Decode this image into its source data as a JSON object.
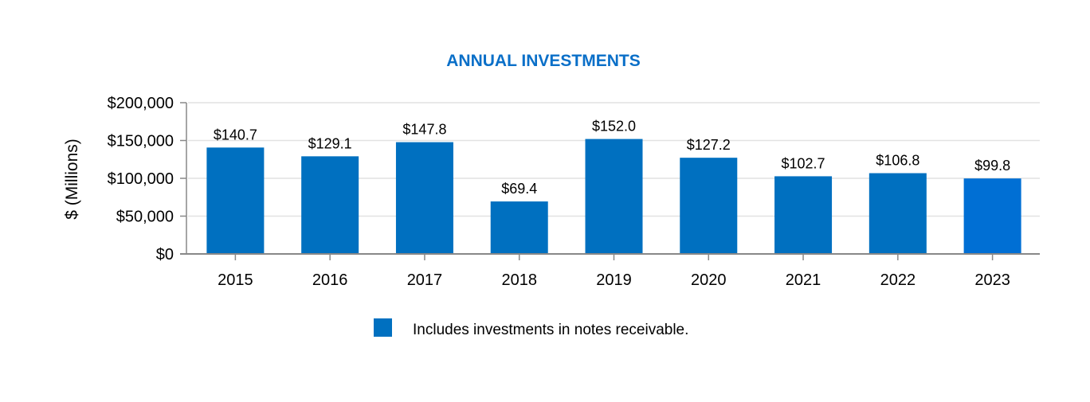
{
  "chart_data": {
    "type": "bar",
    "title": "ANNUAL INVESTMENTS",
    "xlabel": "",
    "ylabel": "$ (Millions)",
    "ylim": [
      0,
      200000
    ],
    "yticks": [
      0,
      50000,
      100000,
      150000,
      200000
    ],
    "ytick_labels": [
      "$0",
      "$50,000",
      "$100,000",
      "$150,000",
      "$200,000"
    ],
    "grid": true,
    "categories": [
      "2015",
      "2016",
      "2017",
      "2018",
      "2019",
      "2020",
      "2021",
      "2022",
      "2023"
    ],
    "values": [
      140700,
      129100,
      147800,
      69400,
      152000,
      127200,
      102700,
      106800,
      99800
    ],
    "data_labels": [
      "$140.7",
      "$129.1",
      "$147.8",
      "$69.4",
      "$152.0",
      "$127.2",
      "$102.7",
      "$106.8",
      "$99.8"
    ],
    "bar_colors": [
      "#0070c0",
      "#0070c0",
      "#0070c0",
      "#0070c0",
      "#0070c0",
      "#0070c0",
      "#0070c0",
      "#0070c0",
      "#006fd4"
    ],
    "title_color": "#0a6fc8",
    "legend": {
      "position": "bottom",
      "entries": [
        {
          "label": "Includes investments in notes receivable.",
          "color": "#0070c0"
        }
      ]
    }
  }
}
